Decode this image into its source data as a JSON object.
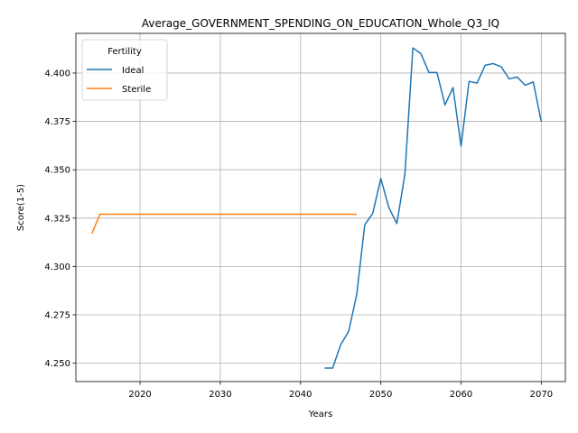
{
  "chart_data": {
    "type": "line",
    "title": "Average_GOVERNMENT_SPENDING_ON_EDUCATION_Whole_Q3_IQ",
    "xlabel": "Years",
    "ylabel": "Score(1-5)",
    "xlim": [
      2012,
      2073
    ],
    "ylim": [
      4.2405,
      4.4205
    ],
    "xticks": [
      2020,
      2030,
      2040,
      2050,
      2060,
      2070
    ],
    "yticks": [
      4.25,
      4.275,
      4.3,
      4.325,
      4.35,
      4.375,
      4.4
    ],
    "xtick_labels": [
      "2020",
      "2030",
      "2040",
      "2050",
      "2060",
      "2070"
    ],
    "ytick_labels": [
      "4.250",
      "4.275",
      "4.300",
      "4.325",
      "4.350",
      "4.375",
      "4.400"
    ],
    "grid": true,
    "legend": {
      "title": "Fertility",
      "placement": "upper-left"
    },
    "series": [
      {
        "name": "Ideal",
        "color": "#1f77b4",
        "x": [
          2043,
          2044,
          2045,
          2046,
          2047,
          2048,
          2049,
          2050,
          2051,
          2052,
          2053,
          2054,
          2055,
          2056,
          2057,
          2058,
          2059,
          2060,
          2061,
          2062,
          2063,
          2064,
          2065,
          2066,
          2067,
          2068,
          2069,
          2070
        ],
        "y": [
          4.2475,
          4.2475,
          4.2595,
          4.2665,
          4.2855,
          4.3215,
          4.3275,
          4.3455,
          4.3305,
          4.3222,
          4.3475,
          4.413,
          4.41,
          4.4003,
          4.4003,
          4.3835,
          4.3925,
          4.3622,
          4.3957,
          4.3948,
          4.404,
          4.4049,
          4.4032,
          4.397,
          4.3979,
          4.3937,
          4.3954,
          4.3748
        ]
      },
      {
        "name": "Sterile",
        "color": "#ff7f0e",
        "x": [
          2014,
          2015,
          2016,
          2017,
          2018,
          2019,
          2020,
          2021,
          2022,
          2023,
          2024,
          2025,
          2026,
          2027,
          2028,
          2029,
          2030,
          2031,
          2032,
          2033,
          2034,
          2035,
          2036,
          2037,
          2038,
          2039,
          2040,
          2041,
          2042,
          2043,
          2044,
          2045,
          2046,
          2047
        ],
        "y": [
          4.317,
          4.327,
          4.327,
          4.327,
          4.327,
          4.327,
          4.327,
          4.327,
          4.327,
          4.327,
          4.327,
          4.327,
          4.327,
          4.327,
          4.327,
          4.327,
          4.327,
          4.327,
          4.327,
          4.327,
          4.327,
          4.327,
          4.327,
          4.327,
          4.327,
          4.327,
          4.327,
          4.327,
          4.327,
          4.327,
          4.327,
          4.327,
          4.327,
          4.327
        ]
      }
    ]
  }
}
